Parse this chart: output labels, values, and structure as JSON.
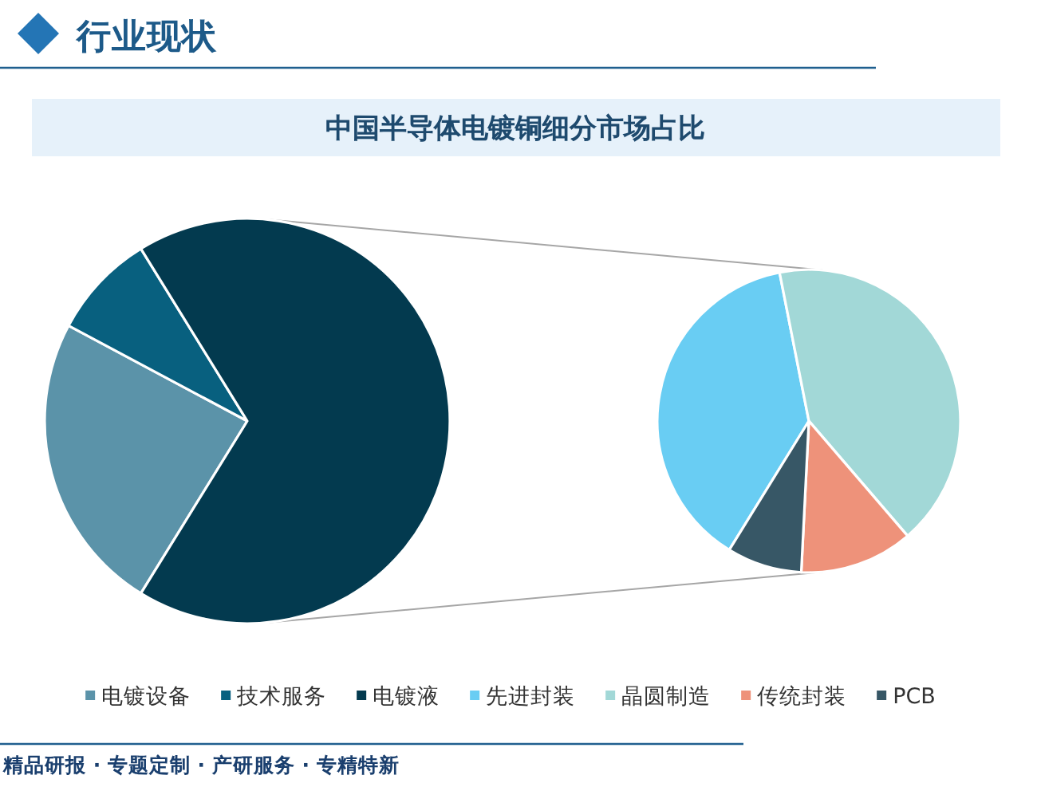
{
  "chart_data": [
    {
      "type": "pie",
      "title": "中国半导体电镀铜细分市场占比",
      "annotations": [
        "行业现状",
        "精品研报 · 专题定制 · 产研服务 · 专精特新"
      ],
      "categories": [
        "电镀设备",
        "技术服务",
        "电镀液"
      ],
      "values": [
        24.0,
        8.4,
        67.6
      ],
      "colors": [
        "#5b93a9",
        "#08607f",
        "#033a4f"
      ],
      "legend": "bottom"
    },
    {
      "type": "pie",
      "categories": [
        "先进封装",
        "晶圆制造",
        "传统封装",
        "PCB"
      ],
      "values": [
        38.1,
        41.8,
        12.1,
        8.0
      ],
      "colors": [
        "#69cdf3",
        "#a2d8d7",
        "#ee927a",
        "#375766"
      ],
      "legend": "bottom"
    }
  ]
}
